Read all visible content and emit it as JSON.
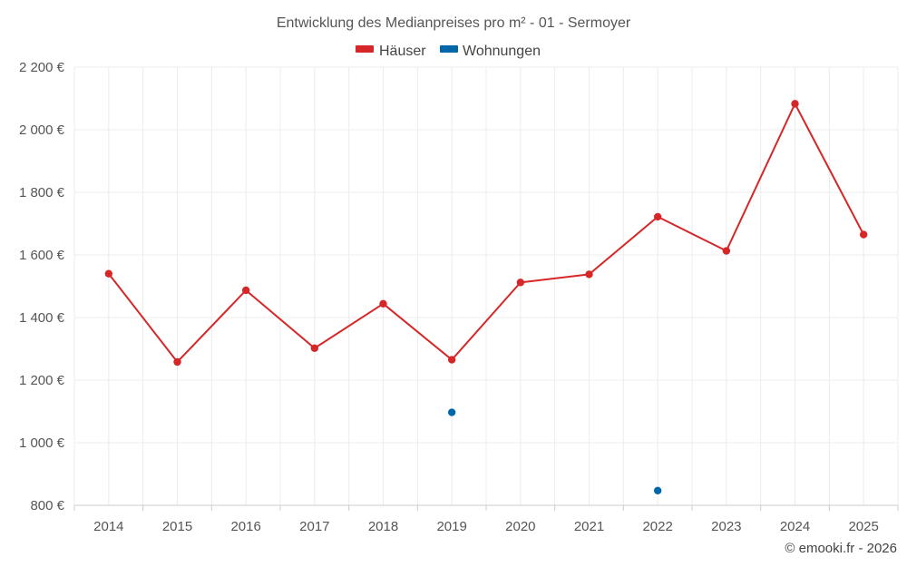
{
  "chart_data": {
    "type": "line",
    "title": "Entwicklung des Medianpreises pro m² - 01 - Sermoyer",
    "categories": [
      "2014",
      "2015",
      "2016",
      "2017",
      "2018",
      "2019",
      "2020",
      "2021",
      "2022",
      "2023",
      "2024",
      "2025"
    ],
    "series": [
      {
        "name": "Häuser",
        "color": "#d62728",
        "values": [
          1540,
          1258,
          1487,
          1302,
          1444,
          1265,
          1512,
          1538,
          1722,
          1613,
          2083,
          1665
        ]
      },
      {
        "name": "Wohnungen",
        "color": "#0066aa",
        "values": [
          null,
          null,
          null,
          null,
          null,
          1097,
          null,
          null,
          847,
          null,
          null,
          null
        ]
      }
    ],
    "ylim": [
      800,
      2200
    ],
    "yticks": [
      800,
      1000,
      1200,
      1400,
      1600,
      1800,
      2000,
      2200
    ],
    "ytick_labels": [
      "800 €",
      "1 000 €",
      "1 200 €",
      "1 400 €",
      "1 600 €",
      "1 800 €",
      "2 000 €",
      "2 200 €"
    ],
    "xlabel": "",
    "ylabel": "",
    "grid": true,
    "legend": "top-center"
  },
  "credit": "© emooki.fr - 2026"
}
